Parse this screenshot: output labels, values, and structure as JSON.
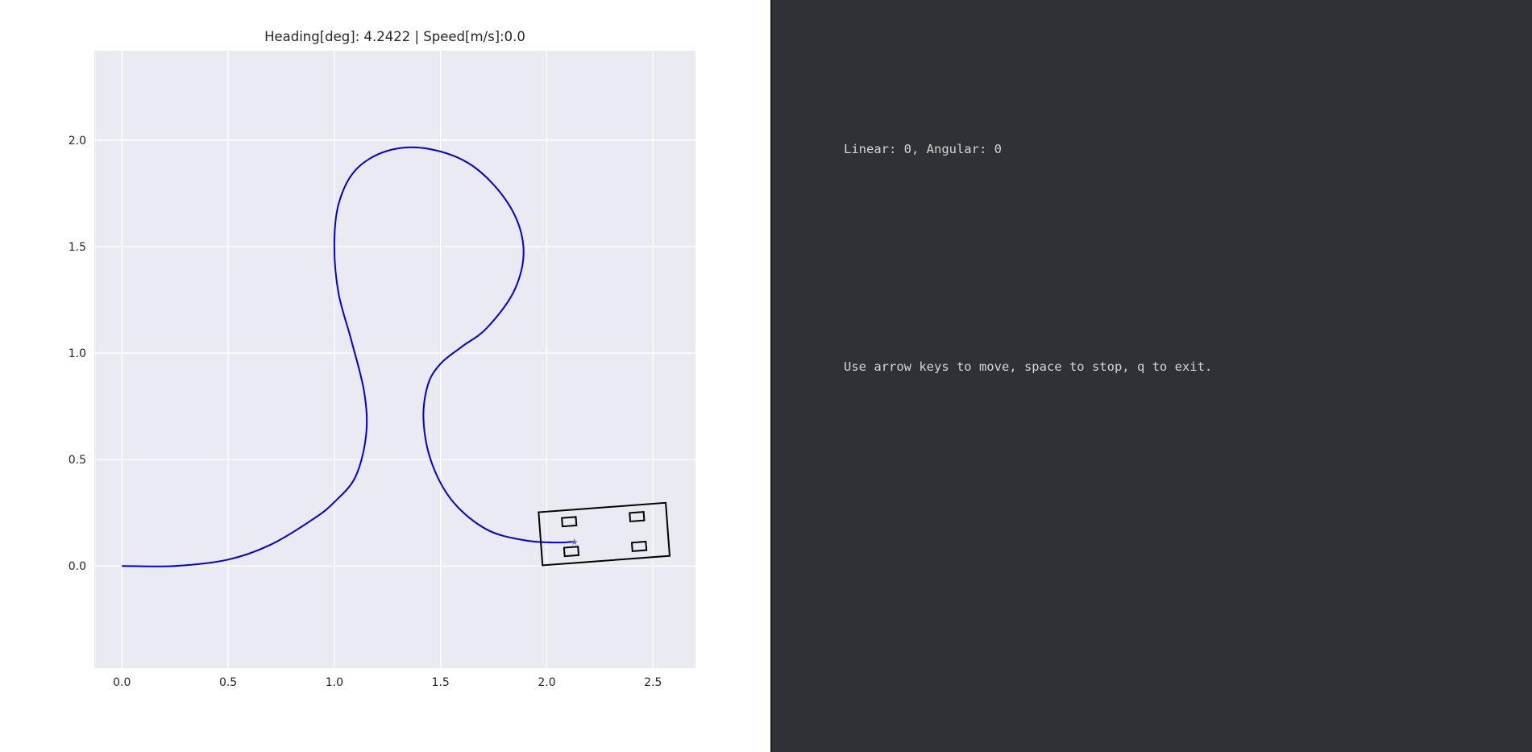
{
  "plot": {
    "title": "Heading[deg]: 4.2422 | Speed[m/s]:0.0",
    "colors": {
      "axes_background": "#eaeaf2",
      "grid": "#ffffff",
      "path": "#0000dd",
      "vehicle": "#000000",
      "marker": "#4c72b0",
      "text": "#262626"
    }
  },
  "chart_data": {
    "type": "line",
    "title": "Heading[deg]: 4.2422 | Speed[m/s]:0.0",
    "xlabel": "",
    "ylabel": "",
    "xlim": [
      -0.13,
      2.7
    ],
    "ylim": [
      -0.48,
      2.42
    ],
    "xticks": [
      "0.0",
      "0.5",
      "1.0",
      "1.5",
      "2.0",
      "2.5"
    ],
    "yticks": [
      "0.0",
      "0.5",
      "1.0",
      "1.5",
      "2.0"
    ],
    "grid": true,
    "series": [
      {
        "x": [
          0.0,
          0.25,
          0.5,
          0.7,
          0.9,
          1.0,
          1.1,
          1.15,
          1.14,
          1.08,
          1.02,
          1.0,
          1.02,
          1.1,
          1.25,
          1.44,
          1.65,
          1.82,
          1.89,
          1.85,
          1.72,
          1.6,
          1.5,
          1.44,
          1.42,
          1.46,
          1.56,
          1.72,
          1.9,
          2.05,
          2.13
        ],
        "y": [
          0.0,
          0.0,
          0.03,
          0.1,
          0.22,
          0.3,
          0.42,
          0.62,
          0.82,
          1.06,
          1.28,
          1.5,
          1.7,
          1.86,
          1.95,
          1.96,
          1.88,
          1.7,
          1.5,
          1.3,
          1.12,
          1.03,
          0.95,
          0.85,
          0.68,
          0.48,
          0.3,
          0.17,
          0.12,
          0.11,
          0.115
        ]
      }
    ],
    "vehicle": {
      "center": [
        2.27,
        0.15
      ],
      "length": 0.6,
      "width": 0.25,
      "heading_deg": 4.2422,
      "marker": [
        2.13,
        0.115
      ]
    }
  },
  "terminal": {
    "status_line": "Linear: 0, Angular: 0",
    "help_line": "Use arrow keys to move, space to stop, q to exit."
  }
}
